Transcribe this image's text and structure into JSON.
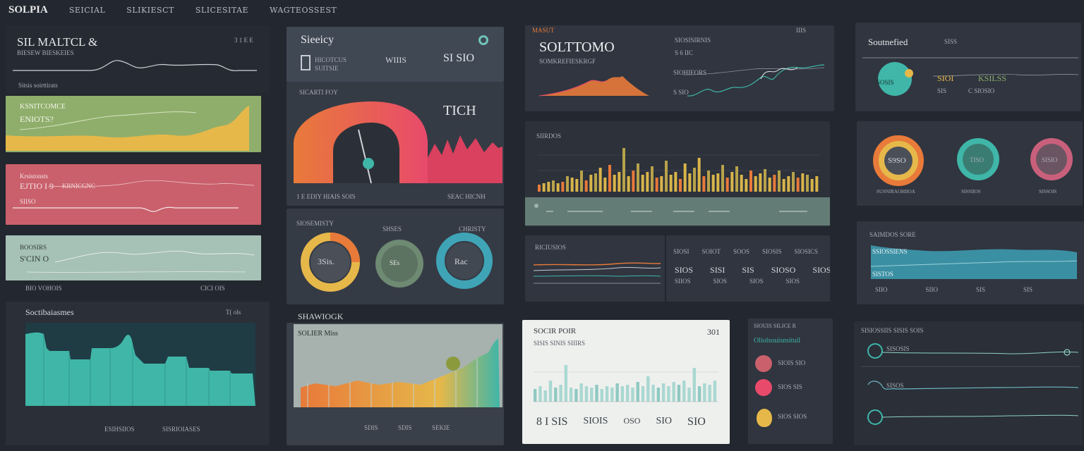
{
  "nav": {
    "brand": "SOLPIA",
    "items": [
      "SEICIAL",
      "SLIKIESCT",
      "SLICESITAE",
      "WAGTEOSSEST"
    ]
  },
  "colors": {
    "background": "#23272f",
    "panel": "#2e333d",
    "green": "#8fae6b",
    "yellow": "#e6b84a",
    "red": "#c9606b",
    "teal": "#3fb6a8",
    "orange": "#e87a3a",
    "pink": "#e84a6b"
  },
  "col1": {
    "header": {
      "title": "SIL MALTCL &",
      "subtitle": "BIESEW BIESKEIES",
      "corner": "3 1 E E",
      "footnote": "Sitsis soirttirats"
    },
    "green_card": {
      "title": "KSNITCOMCE",
      "value": "ENIOTS?"
    },
    "red_card": {
      "title": "Krsistonsts",
      "value": "EJTIO I 9",
      "side": "KRNICGNC",
      "footer": "SIISO"
    },
    "teal_card": {
      "title": "BOOSIRS",
      "value": "S'CIN O",
      "footer_left": "BIO VOHOIS",
      "footer_right": "CICI OIS"
    },
    "bars": {
      "title": "Soctibaiasmes",
      "corner": "T(  ols",
      "footer_left": "ESIHSIIOS",
      "footer_right": "SISRIOIASES"
    }
  },
  "col2": {
    "header": {
      "title": "Sieeicy",
      "line1": "HICOTCUS",
      "line2": "SUITSIE",
      "val1": "WIIIS",
      "val2": "SI SIO"
    },
    "gauge": {
      "label": "SICARTI FOY",
      "value": "TICH",
      "footer_left": "1 E EDIY HIAIS SOIS",
      "footer_right": "SEAC HICNH"
    },
    "rings": {
      "label": "SIOSEMISTY",
      "label2": "SHSES",
      "label3": "CHRISTY",
      "ring1": "3Sis.",
      "ring2": "SEs",
      "ring3": "Rac"
    },
    "area": {
      "section": "SHAWIOGK",
      "title": "SOLIER Miss",
      "f1": "SDIS",
      "f2": "SDIS",
      "f3": "SEKIE"
    }
  },
  "col3": {
    "header": {
      "tag": "MASUT",
      "title": "SOLTTOMO",
      "subtitle": "SOMKREFIESKRGF",
      "corner": "IIIS",
      "label_a": "SIOSISIRNIS",
      "label_b": "S 6 IIC",
      "label_c": "SIOHIEORS",
      "label_d": "S SIO"
    },
    "bars": {
      "title": "SIIRDOS"
    },
    "lines": {
      "title": "RICIUSIOS",
      "cols": [
        "SIOSI",
        "SOIOT",
        "SOOS",
        "SIOSIS",
        "SIOSICS"
      ],
      "vals": [
        "SIOS",
        "SISI",
        "SIS",
        "SIOSO",
        "SIOS"
      ],
      "vals2": [
        "SIIOS",
        "SIOS",
        "SIOS",
        "SIOS"
      ]
    },
    "white": {
      "title": "SOCIR POIR",
      "subtitle": "SISIS SINIS SIIIRS",
      "corner": "301",
      "footer": [
        "8 I SIS",
        "SIOIS",
        "OSO",
        "SIO",
        "SIO"
      ]
    },
    "list": {
      "title": "SIOUIS SILICE R",
      "subtitle": "Oliolsouisnsituil",
      "items": [
        "SIOIS SIO",
        "SIOS SIS",
        "SIOS SIOS"
      ]
    }
  },
  "col4": {
    "header": {
      "title": "Soutnefied",
      "tag": "SISS",
      "val1": "SIOI",
      "val2": "KSILSS",
      "sub1": "SIS",
      "sub2": "C SIOSIO",
      "blob": "SOSIS"
    },
    "circles": {
      "c1": "S9SO",
      "c2": "TISO",
      "c3": "SISIO",
      "l1": "SUSNIRAOHIIOA",
      "l2": "SISSIIOS",
      "l3": "SISSOIS"
    },
    "area": {
      "title": "SAIMDOS SORE",
      "label": "SSIOSSIENS",
      "sub": "SISTOS",
      "footer": [
        "SIIO",
        "SIIO",
        "SIS",
        "SIS"
      ]
    },
    "lines": {
      "title": "SISIOSSIIS SISIS SOIS",
      "item1": "SISOSIS",
      "item2": "SISOS"
    }
  }
}
